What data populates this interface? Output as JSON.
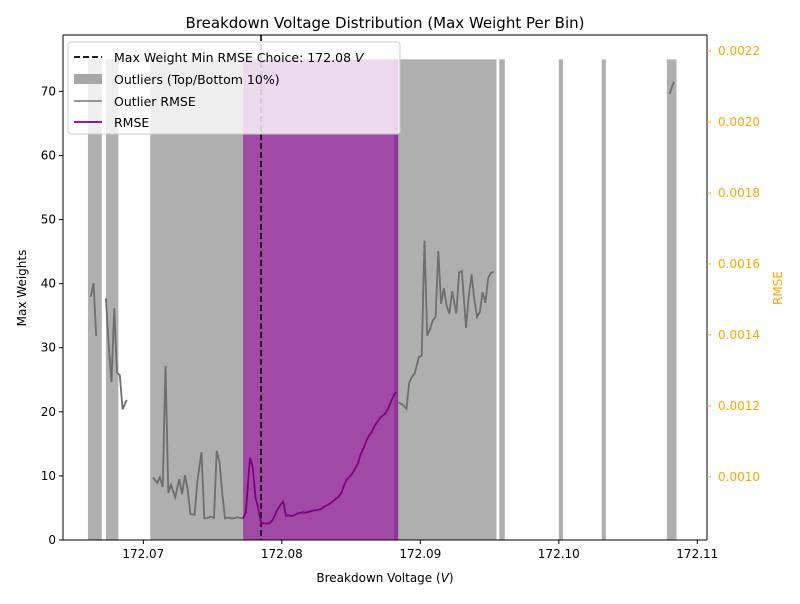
{
  "chart_data": {
    "type": "bar",
    "title": "Breakdown Voltage Distribution (Max Weight Per Bin)",
    "xlabel": "Breakdown Voltage (",
    "xlabel_unit": "V",
    "xlabel_suffix": ")",
    "ylabel": "Max Weights",
    "y2label": "RMSE",
    "xlim": [
      172.0642,
      172.1107
    ],
    "ylim": [
      0,
      78.8
    ],
    "y2lim": [
      0.000822,
      0.002245
    ],
    "x_ticks": [
      "172.07",
      "172.08",
      "172.09",
      "172.10",
      "172.11"
    ],
    "x_tick_values": [
      172.07,
      172.08,
      172.09,
      172.1,
      172.11
    ],
    "y_ticks": [
      "0",
      "10",
      "20",
      "30",
      "40",
      "50",
      "60",
      "70"
    ],
    "y_tick_values": [
      0,
      10,
      20,
      30,
      40,
      50,
      60,
      70
    ],
    "y2_ticks": [
      "0.0010",
      "0.0012",
      "0.0014",
      "0.0016",
      "0.0018",
      "0.0020",
      "0.0022"
    ],
    "y2_tick_values": [
      0.001,
      0.0012,
      0.0014,
      0.0016,
      0.0018,
      0.002,
      0.0022
    ],
    "colors": {
      "outlier_bar": "#a8a8a8",
      "main_bar": "#a04aa6",
      "main_bar_edge": "#8e3896",
      "outlier_rmse": "#6e6e6e",
      "rmse": "#800080",
      "choice_line": "#000000",
      "secondary_axis": "#ffa500"
    },
    "legend": {
      "position": "top-left",
      "entries": [
        {
          "label_prefix": "Max Weight Min RMSE Choice: 172.08 ",
          "label_unit": "V",
          "style": "dashed-line",
          "color": "#000000"
        },
        {
          "label": "Outliers (Top/Bottom 10%)",
          "style": "patch",
          "color": "#a8a8a8"
        },
        {
          "label": "Outlier RMSE",
          "style": "line",
          "color": "#8a8a8a"
        },
        {
          "label": "RMSE",
          "style": "line",
          "color": "#800080"
        }
      ]
    },
    "choice_x": 172.0785,
    "outlier_bars": [
      {
        "x0": 172.066,
        "x1": 172.0664,
        "value": 75
      },
      {
        "x0": 172.0664,
        "x1": 172.067,
        "value": 75
      },
      {
        "x0": 172.0673,
        "x1": 172.0682,
        "value": 75
      },
      {
        "x0": 172.0705,
        "x1": 172.0772,
        "value": 75
      },
      {
        "x0": 172.0884,
        "x1": 172.0955,
        "value": 75
      },
      {
        "x0": 172.0957,
        "x1": 172.0961,
        "value": 75
      },
      {
        "x0": 172.1,
        "x1": 172.1003,
        "value": 75
      },
      {
        "x0": 172.1031,
        "x1": 172.1034,
        "value": 75
      },
      {
        "x0": 172.1078,
        "x1": 172.1085,
        "value": 75
      }
    ],
    "main_bars": [
      {
        "x0": 172.0772,
        "x1": 172.0884,
        "value": 75
      }
    ],
    "outlier_rmse_segments": [
      {
        "x": [
          172.0662,
          172.0664,
          172.0666
        ],
        "y": [
          0.001507,
          0.001546,
          0.001397
        ]
      },
      {
        "x": [
          172.0673,
          172.0675,
          172.0677,
          172.0679,
          172.0681,
          172.0683,
          172.0685,
          172.0687,
          172.0688
        ],
        "y": [
          0.001503,
          0.001371,
          0.001267,
          0.001475,
          0.001294,
          0.001286,
          0.00119,
          0.001208,
          0.001217
        ]
      },
      {
        "x": [
          172.0707,
          172.071,
          172.0712,
          172.0714,
          172.0716,
          172.0718,
          172.072,
          172.0723,
          172.0726,
          172.0728,
          172.073,
          172.0732,
          172.0734,
          172.0737,
          172.0739,
          172.0742,
          172.0744,
          172.0746,
          172.0749,
          172.0751,
          172.0753,
          172.0755,
          172.0757,
          172.0759,
          172.0761,
          172.0764,
          172.0766,
          172.0768,
          172.077,
          172.0772
        ],
        "y": [
          0.000998,
          0.000983,
          0.000999,
          0.000971,
          0.001313,
          0.000955,
          0.000978,
          0.000942,
          0.000994,
          0.000951,
          0.001005,
          0.000965,
          0.000895,
          0.000893,
          0.000986,
          0.001069,
          0.000883,
          0.000884,
          0.000888,
          0.000884,
          0.001073,
          0.001043,
          0.000953,
          0.000883,
          0.000885,
          0.000883,
          0.000884,
          0.000886,
          0.000884,
          0.000884
        ]
      },
      {
        "x": [
          172.0884,
          172.0887,
          172.089,
          172.0892,
          172.0894,
          172.0896,
          172.0899,
          172.0901,
          172.0903,
          172.0905,
          172.0907,
          172.0909,
          172.0911,
          172.0913,
          172.0915,
          172.0917,
          172.0919,
          172.0921,
          172.0923,
          172.0926,
          172.0928,
          172.093,
          172.0933,
          172.0935,
          172.0937,
          172.0939,
          172.0941,
          172.0943,
          172.0945,
          172.0947,
          172.0949,
          172.0951,
          172.0953
        ],
        "y": [
          0.00121,
          0.001204,
          0.001192,
          0.001265,
          0.001282,
          0.001292,
          0.001338,
          0.001342,
          0.001666,
          0.001398,
          0.001416,
          0.001441,
          0.00145,
          0.001636,
          0.001487,
          0.001532,
          0.001481,
          0.00146,
          0.001523,
          0.00146,
          0.001576,
          0.00158,
          0.00142,
          0.00151,
          0.00157,
          0.0015,
          0.00145,
          0.001465,
          0.00152,
          0.00149,
          0.00156,
          0.001575,
          0.001578
        ]
      },
      {
        "x": [
          172.108,
          172.1083
        ],
        "y": [
          0.002079,
          0.002113
        ]
      }
    ],
    "rmse": {
      "x": [
        172.0772,
        172.0774,
        172.0777,
        172.0779,
        172.0781,
        172.0783,
        172.0785,
        172.0787,
        172.0789,
        172.0791,
        172.0793,
        172.0795,
        172.0797,
        172.0799,
        172.0801,
        172.0803,
        172.0805,
        172.0807,
        172.0809,
        172.0811,
        172.0813,
        172.0815,
        172.0817,
        172.0819,
        172.0821,
        172.0823,
        172.0825,
        172.0827,
        172.0829,
        172.0831,
        172.0833,
        172.0835,
        172.0837,
        172.0839,
        172.0841,
        172.0843,
        172.0845,
        172.0847,
        172.0849,
        172.0851,
        172.0853,
        172.0855,
        172.0857,
        172.0859,
        172.0861,
        172.0863,
        172.0865,
        172.0867,
        172.0869,
        172.0871,
        172.0873,
        172.0875,
        172.0877,
        172.0879,
        172.0881,
        172.0883
      ],
      "y": [
        0.000883,
        0.0009,
        0.001054,
        0.001028,
        0.000941,
        0.000912,
        0.000869,
        0.000869,
        0.000868,
        0.000869,
        0.000876,
        0.000891,
        0.00091,
        0.000921,
        0.00093,
        0.00089,
        0.000892,
        0.000889,
        0.000892,
        0.000896,
        0.000898,
        0.0009,
        0.000899,
        0.000901,
        0.000903,
        0.000905,
        0.000906,
        0.000908,
        0.000911,
        0.000917,
        0.00092,
        0.000925,
        0.000931,
        0.000938,
        0.000944,
        0.000955,
        0.000976,
        0.000993,
        0.001001,
        0.00101,
        0.001024,
        0.001038,
        0.001065,
        0.00108,
        0.0011,
        0.001117,
        0.001127,
        0.001144,
        0.001155,
        0.001166,
        0.001173,
        0.00118,
        0.001195,
        0.001213,
        0.001232,
        0.001239
      ]
    }
  }
}
